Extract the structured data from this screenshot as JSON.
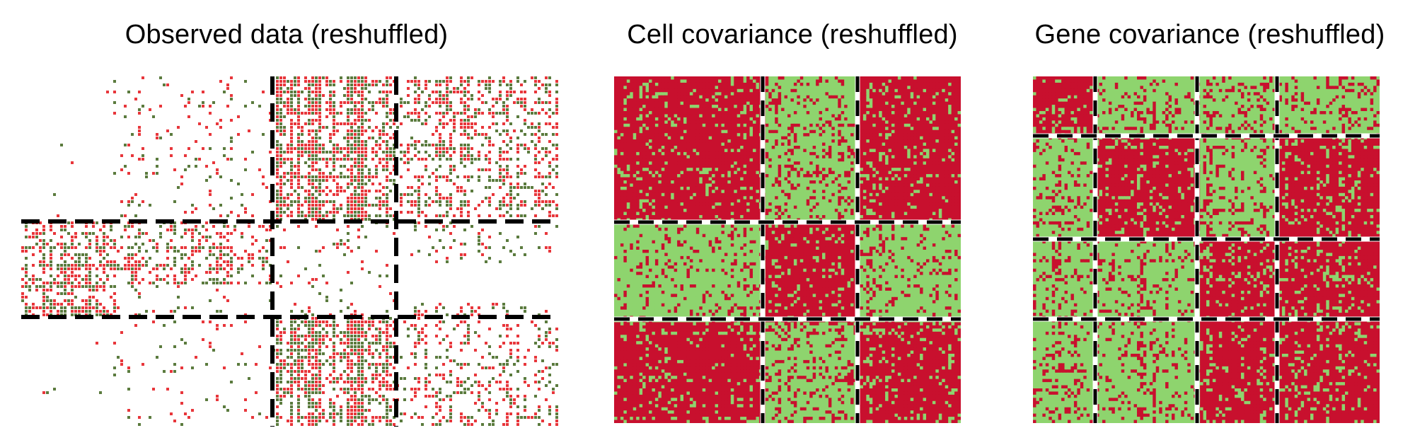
{
  "panels": [
    {
      "title": "Observed data (reshuffled)"
    },
    {
      "title": "Cell covariance (reshuffled)"
    },
    {
      "title": "Gene covariance (reshuffled)"
    }
  ],
  "colors": {
    "red": "#c8102e",
    "bright_red": "#e8363b",
    "dark_green": "#5b7b3e",
    "light_green": "#8ed46e",
    "background": "#ffffff",
    "line_black": "#000000",
    "line_white": "#ffffff"
  }
}
